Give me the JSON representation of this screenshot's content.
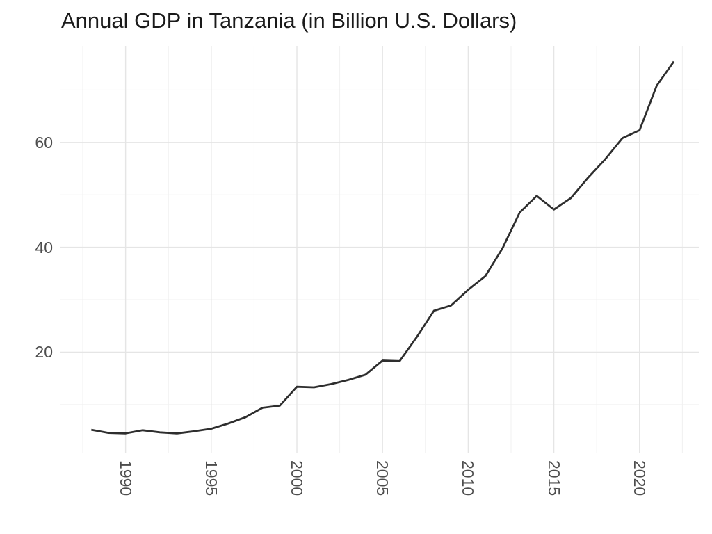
{
  "title": "Annual GDP in Tanzania (in Billion U.S. Dollars)",
  "chart_data": {
    "type": "line",
    "title": "Annual GDP in Tanzania (in Billion U.S. Dollars)",
    "xlabel": "",
    "ylabel": "",
    "legend": false,
    "grid": true,
    "x": [
      1988,
      1989,
      1990,
      1991,
      1992,
      1993,
      1994,
      1995,
      1996,
      1997,
      1998,
      1999,
      2000,
      2001,
      2002,
      2003,
      2004,
      2005,
      2006,
      2007,
      2008,
      2009,
      2010,
      2011,
      2012,
      2013,
      2014,
      2015,
      2016,
      2017,
      2018,
      2019,
      2020,
      2021,
      2022
    ],
    "series": [
      {
        "name": "Annual GDP (billion U.S. dollars)",
        "values": [
          5.2,
          4.6,
          4.5,
          5.1,
          4.7,
          4.5,
          4.9,
          5.4,
          6.4,
          7.6,
          9.4,
          9.8,
          13.4,
          13.3,
          13.9,
          14.7,
          15.7,
          18.4,
          18.3,
          22.9,
          27.9,
          28.9,
          31.9,
          34.5,
          39.8,
          46.6,
          49.8,
          47.2,
          49.4,
          53.3,
          56.8,
          60.8,
          62.3,
          70.8,
          75.4
        ]
      }
    ],
    "xlim": [
      1986.2,
      2023.5
    ],
    "ylim": [
      0.7,
      78.4
    ],
    "x_tick_labels": [
      "1990",
      "1995",
      "2000",
      "2005",
      "2010",
      "2015",
      "2020"
    ],
    "x_ticks_major": [
      1990,
      1995,
      2000,
      2005,
      2010,
      2015,
      2020
    ],
    "x_ticks_minor": [
      1987.5,
      1992.5,
      1997.5,
      2002.5,
      2007.5,
      2012.5,
      2017.5,
      2022.5
    ],
    "y_tick_labels": [
      "20",
      "40",
      "60"
    ],
    "y_ticks_major": [
      20,
      40,
      60
    ],
    "y_ticks_minor": [
      10,
      30,
      50,
      70
    ],
    "colors": {
      "line": "#2e2e2e",
      "grid_major": "#e5e5e5",
      "grid_minor": "#f0f0f0",
      "axis_text": "#4d4d4d",
      "title_text": "#1a1a1a",
      "background": "#ffffff"
    }
  }
}
